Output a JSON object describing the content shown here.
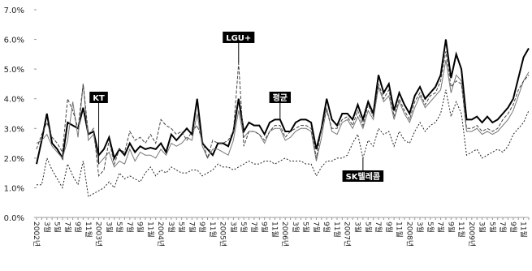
{
  "chart_data": {
    "type": "line",
    "categories": [
      "2002년",
      null,
      "3월",
      null,
      "5월",
      null,
      "7월",
      null,
      "9월",
      null,
      "11월",
      null,
      "2003년",
      null,
      "3월",
      null,
      "5월",
      null,
      "7월",
      null,
      "9월",
      null,
      "11월",
      null,
      "2004년",
      null,
      "3월",
      null,
      "5월",
      null,
      "7월",
      null,
      "9월",
      null,
      "11월",
      null,
      "2005년",
      null,
      "3월",
      null,
      "5월",
      null,
      "7월",
      null,
      "9월",
      null,
      "11월",
      null,
      "2006년",
      null,
      "3월",
      null,
      "5월",
      null,
      "7월",
      null,
      "9월",
      null,
      "11월",
      null,
      "2007년",
      null,
      "3월",
      null,
      "5월",
      null,
      "7월",
      null,
      "9월",
      null,
      "11월",
      null,
      "2008년",
      null,
      "3월",
      null,
      "5월",
      null,
      "7월",
      null,
      "9월",
      null,
      "11월",
      null,
      "2009년",
      null,
      "3월",
      null,
      "5월",
      null,
      "7월",
      null,
      "9월",
      null,
      "11월",
      null
    ],
    "series": [
      {
        "name": "평균",
        "color": "#000000",
        "values": [
          1.8,
          2.6,
          3.5,
          2.5,
          2.3,
          2.0,
          3.2,
          3.1,
          3.0,
          3.7,
          2.8,
          2.9,
          2.1,
          2.3,
          2.7,
          2.0,
          2.3,
          2.1,
          2.5,
          2.2,
          2.4,
          2.3,
          2.35,
          2.3,
          2.5,
          2.2,
          2.8,
          2.6,
          2.8,
          3.0,
          2.8,
          4.0,
          2.5,
          2.3,
          2.1,
          2.5,
          2.5,
          2.4,
          2.9,
          4.0,
          2.9,
          3.2,
          3.1,
          3.1,
          2.8,
          3.2,
          3.3,
          3.3,
          2.9,
          2.9,
          3.2,
          3.3,
          3.3,
          3.2,
          2.3,
          3.0,
          4.0,
          3.3,
          3.1,
          3.5,
          3.5,
          3.3,
          3.8,
          3.3,
          3.9,
          3.5,
          4.8,
          4.2,
          4.5,
          3.6,
          4.2,
          3.8,
          3.5,
          4.1,
          4.4,
          4.0,
          4.2,
          4.4,
          4.8,
          6.0,
          4.7,
          5.5,
          5.0,
          3.3,
          3.3,
          3.4,
          3.2,
          3.4,
          3.2,
          3.3,
          3.5,
          3.7,
          4.0,
          4.7,
          5.4,
          5.7
        ]
      },
      {
        "name": "KT",
        "color": "#777777",
        "values": [
          2.5,
          2.6,
          2.8,
          2.4,
          2.2,
          2.0,
          2.6,
          3.9,
          2.7,
          4.5,
          2.6,
          2.8,
          1.8,
          2.0,
          2.2,
          1.7,
          1.9,
          1.8,
          2.3,
          1.9,
          2.2,
          2.1,
          2.1,
          2.0,
          2.3,
          2.1,
          2.5,
          2.4,
          2.5,
          2.7,
          2.6,
          3.5,
          2.4,
          2.0,
          2.3,
          2.3,
          2.2,
          2.1,
          2.6,
          3.6,
          2.7,
          2.9,
          2.9,
          2.8,
          2.5,
          2.9,
          3.0,
          3.0,
          2.6,
          2.7,
          2.9,
          3.0,
          3.0,
          2.9,
          1.9,
          2.7,
          3.7,
          2.9,
          2.8,
          3.2,
          3.3,
          3.0,
          3.4,
          3.0,
          3.6,
          3.3,
          4.4,
          3.9,
          4.1,
          3.3,
          3.9,
          3.5,
          3.2,
          3.7,
          4.1,
          3.7,
          3.9,
          4.1,
          4.3,
          5.3,
          4.2,
          4.8,
          4.6,
          2.9,
          2.9,
          3.0,
          2.8,
          2.9,
          2.8,
          2.9,
          3.1,
          3.3,
          3.6,
          4.1,
          4.6,
          4.9
        ]
      },
      {
        "name": "LGU+",
        "color": "#444444",
        "values": [
          2.3,
          2.8,
          3.2,
          2.7,
          2.5,
          2.2,
          4.0,
          3.6,
          3.0,
          4.5,
          2.8,
          3.0,
          1.4,
          1.6,
          2.6,
          1.8,
          2.3,
          2.2,
          2.9,
          2.6,
          2.7,
          2.5,
          2.8,
          2.5,
          3.3,
          3.1,
          3.0,
          2.8,
          2.9,
          2.6,
          2.9,
          3.1,
          2.6,
          2.0,
          2.6,
          2.5,
          2.5,
          2.6,
          2.9,
          5.2,
          2.4,
          2.9,
          2.9,
          2.8,
          2.6,
          2.9,
          3.1,
          3.1,
          2.7,
          2.9,
          3.0,
          3.1,
          3.1,
          3.0,
          2.0,
          3.0,
          3.6,
          3.0,
          3.0,
          3.3,
          3.4,
          3.1,
          3.6,
          3.1,
          3.8,
          3.4,
          4.5,
          4.0,
          4.3,
          3.4,
          4.0,
          3.6,
          3.3,
          3.9,
          4.2,
          3.8,
          4.1,
          4.2,
          4.6,
          5.6,
          4.4,
          4.6,
          4.5,
          3.0,
          3.0,
          3.1,
          2.9,
          3.0,
          2.9,
          3.0,
          3.3,
          3.5,
          3.8,
          4.3,
          4.6,
          4.8
        ]
      },
      {
        "name": "SK텔레콤",
        "color": "#222222",
        "values": [
          1.1,
          1.1,
          2.0,
          1.6,
          1.3,
          1.0,
          1.8,
          1.4,
          1.1,
          1.9,
          0.7,
          0.8,
          0.9,
          1.0,
          1.2,
          1.0,
          1.5,
          1.3,
          1.4,
          1.3,
          1.2,
          1.5,
          1.7,
          1.4,
          1.6,
          1.5,
          1.7,
          1.6,
          1.5,
          1.5,
          1.6,
          1.6,
          1.4,
          1.5,
          1.6,
          1.8,
          1.7,
          1.7,
          1.6,
          1.7,
          1.8,
          1.9,
          1.8,
          1.8,
          1.9,
          1.9,
          1.8,
          1.9,
          2.0,
          1.9,
          1.9,
          1.9,
          1.8,
          1.8,
          1.4,
          1.7,
          1.9,
          1.9,
          2.0,
          2.0,
          2.1,
          2.5,
          2.8,
          2.0,
          2.6,
          2.4,
          3.0,
          2.8,
          2.9,
          2.4,
          2.9,
          2.6,
          2.5,
          2.9,
          3.2,
          2.9,
          3.1,
          3.2,
          3.5,
          4.3,
          3.4,
          3.9,
          3.5,
          2.1,
          2.2,
          2.3,
          2.0,
          2.1,
          2.2,
          2.3,
          2.2,
          2.4,
          2.8,
          3.0,
          3.2,
          3.6
        ]
      }
    ],
    "ylim": [
      0,
      7
    ],
    "yticks": [
      {
        "value": 0,
        "label": "0.0%"
      },
      {
        "value": 1,
        "label": "1.0%"
      },
      {
        "value": 2,
        "label": "2.0%"
      },
      {
        "value": 3,
        "label": "3.0%"
      },
      {
        "value": 4,
        "label": "4.0%"
      },
      {
        "value": 5,
        "label": "5.0%"
      },
      {
        "value": 6,
        "label": "6.0%"
      },
      {
        "value": 7,
        "label": "7.0%"
      }
    ],
    "grid": false
  }
}
